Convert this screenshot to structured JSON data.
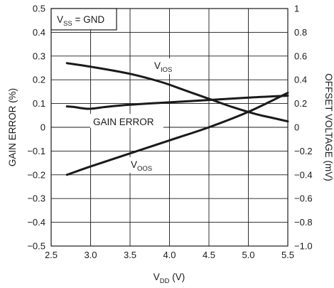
{
  "chart_data": {
    "type": "line",
    "x_axis": {
      "label_main": "V",
      "label_sub": "DD",
      "label_tail": " (V)",
      "range": [
        2.5,
        5.5
      ],
      "ticks": [
        "2.5",
        "3.0",
        "3.5",
        "4.0",
        "4.5",
        "5.0",
        "5.5"
      ],
      "tick_values": [
        2.5,
        3.0,
        3.5,
        4.0,
        4.5,
        5.0,
        5.5
      ]
    },
    "y_left": {
      "label": "GAIN ERROR (%)",
      "range": [
        -0.5,
        0.5
      ],
      "ticks": [
        "0.5",
        "0.4",
        "0.3",
        "0.2",
        "0.1",
        "0",
        "−0.1",
        "−0.2",
        "−0.3",
        "−0.4",
        "−0.5"
      ],
      "tick_values": [
        0.5,
        0.4,
        0.3,
        0.2,
        0.1,
        0,
        -0.1,
        -0.2,
        -0.3,
        -0.4,
        -0.5
      ]
    },
    "y_right": {
      "label": "OFFSET VOLTAGE (mV)",
      "range": [
        -1.0,
        1.0
      ],
      "ticks": [
        "1",
        "0.8",
        "0.6",
        "0.4",
        "0.2",
        "0",
        "−0.2",
        "−0.4",
        "−0.6",
        "−0.8",
        "−1.0"
      ],
      "tick_values": [
        1,
        0.8,
        0.6,
        0.4,
        0.2,
        0,
        -0.2,
        -0.4,
        -0.6,
        -0.8,
        -1.0
      ]
    },
    "grid": true,
    "annotation": {
      "main": "V",
      "sub": "SS",
      "tail": " = GND"
    },
    "series": [
      {
        "name": "GAIN ERROR",
        "axis": "left",
        "x": [
          2.7,
          2.8,
          2.9,
          3.0,
          3.2,
          3.5,
          4.0,
          4.5,
          5.0,
          5.5
        ],
        "y": [
          0.088,
          0.085,
          0.08,
          0.078,
          0.086,
          0.095,
          0.105,
          0.115,
          0.125,
          0.133
        ],
        "label_main": "GAIN ERROR",
        "label_sub": ""
      },
      {
        "name": "VIOS",
        "axis": "right",
        "x": [
          2.7,
          3.0,
          3.5,
          3.9,
          4.2,
          4.5,
          4.8,
          5.1,
          5.3,
          5.5
        ],
        "y": [
          0.54,
          0.51,
          0.45,
          0.38,
          0.31,
          0.24,
          0.17,
          0.11,
          0.08,
          0.05
        ],
        "label_main": "V",
        "label_sub": "IOS"
      },
      {
        "name": "VOOS",
        "axis": "right",
        "x": [
          2.7,
          3.0,
          3.5,
          4.0,
          4.5,
          5.0,
          5.5
        ],
        "y": [
          -0.4,
          -0.33,
          -0.22,
          -0.11,
          0.0,
          0.13,
          0.29
        ],
        "label_main": "V",
        "label_sub": "OOS"
      }
    ]
  }
}
